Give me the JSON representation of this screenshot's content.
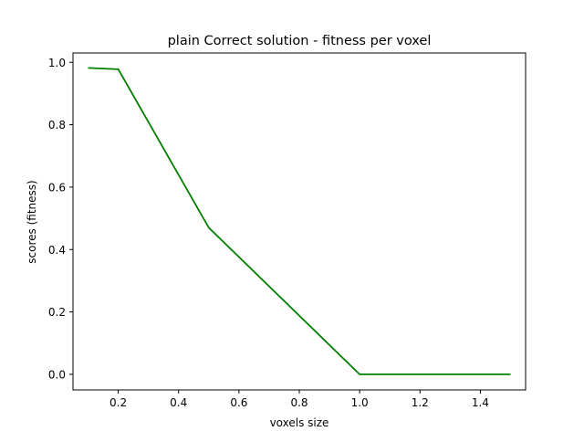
{
  "chart_data": {
    "type": "line",
    "title": "plain Correct solution - fitness per voxel",
    "xlabel": "voxels size",
    "ylabel": "scores (fitness)",
    "xlim": [
      0.05,
      1.55
    ],
    "ylim": [
      -0.05,
      1.03
    ],
    "xticks": [
      0.2,
      0.4,
      0.6,
      0.8,
      1.0,
      1.2,
      1.4
    ],
    "xtick_labels": [
      "0.2",
      "0.4",
      "0.6",
      "0.8",
      "1.0",
      "1.2",
      "1.4"
    ],
    "yticks": [
      0.0,
      0.2,
      0.4,
      0.6,
      0.8,
      1.0
    ],
    "ytick_labels": [
      "0.0",
      "0.2",
      "0.4",
      "0.6",
      "0.8",
      "1.0"
    ],
    "grid": false,
    "series": [
      {
        "x": [
          0.1,
          0.2,
          0.5,
          1.0,
          1.5
        ],
        "values": [
          0.982,
          0.978,
          0.47,
          0.0,
          0.0
        ],
        "color": "#008000"
      }
    ]
  }
}
